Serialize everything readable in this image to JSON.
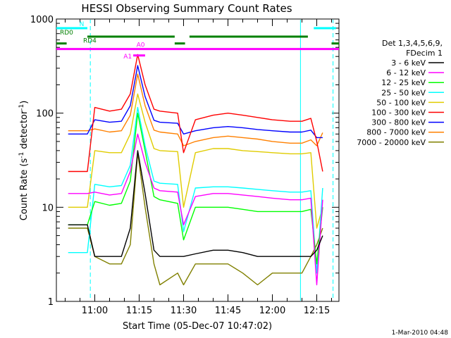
{
  "chart_data": {
    "type": "line",
    "title": "HESSI Observing Summary Count Rates",
    "xlabel": "Start Time (05-Dec-07 10:47:02)",
    "ylabel": "Count Rate (s⁻¹ detector⁻¹)",
    "ylabel_parts": [
      "Count Rate (s",
      "-1",
      " detector",
      "-1",
      ")"
    ],
    "x_ticks": [
      "11:00",
      "11:15",
      "11:30",
      "11:45",
      "12:00",
      "12:15"
    ],
    "x_tick_minutes": [
      660,
      675,
      690,
      705,
      720,
      735
    ],
    "xlim_minutes": [
      647.03,
      742.5
    ],
    "y_scale": "log",
    "ylim": [
      1,
      1000
    ],
    "y_ticks": [
      "1",
      "10",
      "100",
      "1000"
    ],
    "y_tick_values": [
      1,
      10,
      100,
      1000
    ],
    "grid": false,
    "legend_position": "right",
    "legend_header": [
      "Det 1,3,4,5,6,9,",
      "FDecim 1"
    ],
    "series": [
      {
        "name": "3 - 6 keV",
        "color": "#000000",
        "x": [
          651,
          654,
          657.5,
          660,
          665,
          669,
          672,
          674.5,
          677,
          680,
          682,
          688,
          690,
          694,
          700,
          705,
          710,
          715,
          720,
          726,
          730,
          733,
          735,
          737
        ],
        "y": [
          6.5,
          6.5,
          6.5,
          3.0,
          3.0,
          3.0,
          6.0,
          40.0,
          14.0,
          3.5,
          3.0,
          3.0,
          3.0,
          3.2,
          3.5,
          3.5,
          3.3,
          3.0,
          3.0,
          3.0,
          3.0,
          3.0,
          3.5,
          5.0
        ]
      },
      {
        "name": "6 - 12 keV",
        "color": "#ff00ff",
        "x": [
          651,
          654,
          657.5,
          660,
          665,
          669,
          672,
          674.5,
          677,
          680,
          682,
          688,
          690,
          694,
          700,
          705,
          710,
          715,
          720,
          726,
          730,
          733,
          735,
          737
        ],
        "y": [
          14.0,
          14.0,
          14.0,
          14.5,
          13.5,
          14.0,
          24.0,
          60.0,
          30.0,
          16.0,
          15.0,
          14.5,
          6.5,
          13.0,
          14.0,
          14.0,
          13.5,
          13.0,
          12.5,
          12.0,
          12.0,
          12.5,
          1.5,
          12.0
        ]
      },
      {
        "name": "12 - 25 keV",
        "color": "#00ff00",
        "x": [
          651,
          654,
          657.5,
          660,
          665,
          669,
          672,
          674.5,
          677,
          680,
          682,
          688,
          690,
          694,
          700,
          705,
          710,
          715,
          720,
          726,
          730,
          733,
          735,
          737
        ],
        "y": [
          6.5,
          6.5,
          6.5,
          11.5,
          10.5,
          11.0,
          19.0,
          100.0,
          40.0,
          13.0,
          12.0,
          11.0,
          4.5,
          10.0,
          10.0,
          10.0,
          9.5,
          9.0,
          9.0,
          9.0,
          9.0,
          9.5,
          2.5,
          10.0
        ]
      },
      {
        "name": "25 - 50 keV",
        "color": "#00ffff",
        "x": [
          651,
          654,
          657.5,
          660,
          665,
          669,
          672,
          674.5,
          677,
          680,
          682,
          688,
          690,
          694,
          700,
          705,
          710,
          715,
          720,
          726,
          730,
          733,
          735,
          737
        ],
        "y": [
          3.3,
          3.3,
          3.3,
          17.5,
          16.5,
          17.0,
          28.0,
          115.0,
          45.0,
          19.0,
          18.0,
          17.5,
          5.5,
          16.0,
          16.5,
          16.5,
          16.0,
          15.5,
          15.0,
          14.5,
          14.5,
          15.0,
          2.0,
          16.0
        ]
      },
      {
        "name": "50 - 100 keV",
        "color": "#e0cc00",
        "x": [
          651,
          654,
          657.5,
          660,
          665,
          669,
          672,
          674.5,
          677,
          680,
          682,
          688,
          690,
          694,
          700,
          705,
          710,
          715,
          720,
          726,
          730,
          733,
          735,
          737
        ],
        "y": [
          10.0,
          10.0,
          10.0,
          40.0,
          38.0,
          38.0,
          60.0,
          160.0,
          80.0,
          42.0,
          40.0,
          39.0,
          10.0,
          38.0,
          42.0,
          42.0,
          40.0,
          39.0,
          38.0,
          37.0,
          37.0,
          38.0,
          6.0,
          10.0
        ]
      },
      {
        "name": "100 - 300 keV",
        "color": "#ff0000",
        "x": [
          651,
          654,
          657.5,
          660,
          665,
          669,
          672,
          674.5,
          677,
          680,
          682,
          688,
          690,
          694,
          700,
          705,
          710,
          715,
          720,
          726,
          730,
          733,
          735,
          737
        ],
        "y": [
          24.0,
          24.0,
          24.0,
          115.0,
          105.0,
          110.0,
          160.0,
          420.0,
          200.0,
          110.0,
          105.0,
          100.0,
          38.0,
          85.0,
          95.0,
          100.0,
          95.0,
          90.0,
          85.0,
          82.0,
          82.0,
          88.0,
          50.0,
          24.0
        ]
      },
      {
        "name": "300 - 800 keV",
        "color": "#0000ff",
        "x": [
          651,
          654,
          657.5,
          660,
          665,
          669,
          672,
          674.5,
          677,
          680,
          682,
          688,
          690,
          694,
          700,
          705,
          710,
          715,
          720,
          726,
          730,
          733,
          735,
          737
        ],
        "y": [
          60.0,
          60.0,
          60.0,
          85.0,
          80.0,
          82.0,
          120.0,
          320.0,
          150.0,
          84.0,
          80.0,
          78.0,
          60.0,
          65.0,
          70.0,
          72.0,
          70.0,
          67.0,
          65.0,
          63.0,
          63.0,
          66.0,
          55.0,
          55.0
        ]
      },
      {
        "name": "800 - 7000 keV",
        "color": "#ff8000",
        "x": [
          651,
          654,
          657.5,
          660,
          665,
          669,
          672,
          674.5,
          677,
          680,
          682,
          688,
          690,
          694,
          700,
          705,
          710,
          715,
          720,
          726,
          730,
          733,
          735,
          737
        ],
        "y": [
          65.0,
          65.0,
          65.0,
          68.0,
          63.0,
          65.0,
          95.0,
          260.0,
          120.0,
          66.0,
          63.0,
          60.0,
          45.0,
          50.0,
          55.0,
          57.0,
          55.0,
          53.0,
          50.0,
          48.0,
          48.0,
          52.0,
          45.0,
          62.0
        ]
      },
      {
        "name": "7000 - 20000 keV",
        "color": "#808000",
        "x": [
          651,
          654,
          657.5,
          660,
          665,
          669,
          672,
          674.5,
          677,
          680,
          682,
          688,
          690,
          694,
          700,
          705,
          710,
          715,
          720,
          726,
          730,
          733,
          735,
          737
        ],
        "y": [
          6.0,
          6.0,
          6.0,
          3.0,
          2.5,
          2.5,
          4.0,
          38.0,
          10.0,
          2.5,
          1.5,
          2.0,
          1.5,
          2.5,
          2.5,
          2.5,
          2.0,
          1.5,
          2.0,
          2.0,
          2.0,
          3.0,
          4.0,
          6.0
        ]
      }
    ],
    "annotations": {
      "bars": [
        {
          "label": "N",
          "color": "#00ffff",
          "y": 800,
          "segments": [
            [
              647.03,
              657.5
            ],
            [
              734,
              741.5
            ]
          ]
        },
        {
          "label": "RD0",
          "color": "#008000",
          "y": 650,
          "segments": [
            [
              657.5,
              687
            ],
            [
              692,
              732
            ]
          ]
        },
        {
          "label": "RD4",
          "color": "#008000",
          "y": 550,
          "segments": [
            [
              647.03,
              650.5
            ],
            [
              687,
              690.5
            ],
            [
              740,
              742.5
            ]
          ]
        },
        {
          "label": "A0",
          "color": "#ff00ff",
          "y": 480,
          "segments": [
            [
              647.03,
              742.5
            ]
          ]
        },
        {
          "label": "A1",
          "color": "#ff00ff",
          "y": 410,
          "segments": [
            [
              673,
              677
            ]
          ]
        }
      ],
      "vlines": [
        {
          "x": 658.5,
          "color": "#00ffff",
          "style": "dashed"
        },
        {
          "x": 729.5,
          "color": "#00ffff",
          "style": "solid"
        },
        {
          "x": 740.5,
          "color": "#00ffff",
          "style": "dashed"
        }
      ]
    },
    "footer": "1-Mar-2010 04:48"
  }
}
